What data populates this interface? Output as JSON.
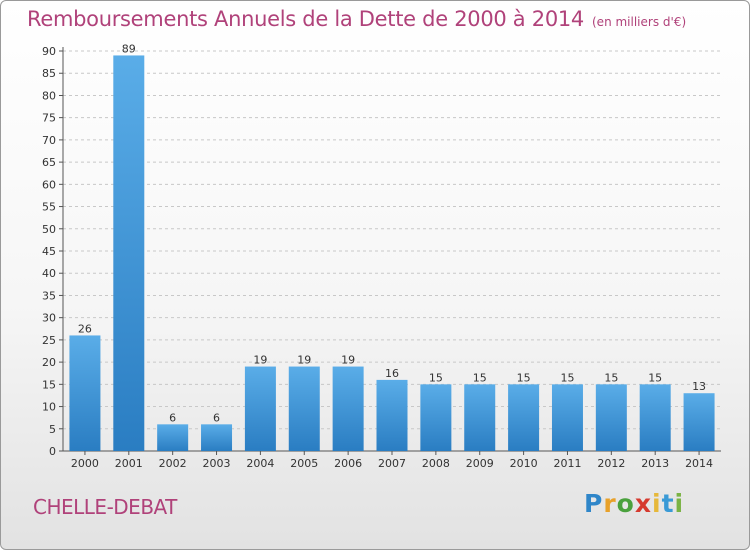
{
  "header": {
    "title": "Remboursements Annuels de la Dette de 2000 à 2014",
    "unit": "(en milliers d'€)"
  },
  "footer": {
    "commune": "CHELLE-DEBAT",
    "brand": [
      "P",
      "r",
      "o",
      "x",
      "i",
      "t",
      "i"
    ]
  },
  "colors": {
    "title": "#b0427a",
    "bar_top": "#5aade8",
    "bar_bottom": "#2a7dc2",
    "grid": "#c8c8c8"
  },
  "chart_data": {
    "type": "bar",
    "categories": [
      "2000",
      "2001",
      "2002",
      "2003",
      "2004",
      "2005",
      "2006",
      "2007",
      "2008",
      "2009",
      "2010",
      "2011",
      "2012",
      "2013",
      "2014"
    ],
    "values": [
      26,
      89,
      6,
      6,
      19,
      19,
      19,
      16,
      15,
      15,
      15,
      15,
      15,
      15,
      13
    ],
    "title": "Remboursements Annuels de la Dette de 2000 à 2014",
    "xlabel": "",
    "ylabel": "",
    "ylim": [
      0,
      90
    ],
    "yticks": [
      0,
      5,
      10,
      15,
      20,
      25,
      30,
      35,
      40,
      45,
      50,
      55,
      60,
      65,
      70,
      75,
      80,
      85,
      90
    ],
    "grid": "horizontal dashed",
    "legend": "none"
  }
}
